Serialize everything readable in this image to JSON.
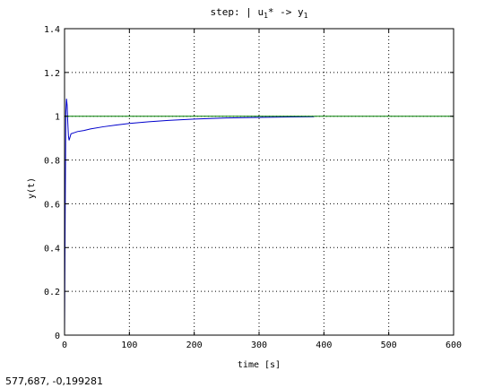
{
  "figure": {
    "background": "#ffffff"
  },
  "status_bar": {
    "coordinates": "577,687, -0,199281"
  },
  "chart_data": {
    "type": "line",
    "title": "step: | u1* -> y1",
    "title_parts": {
      "prefix": "step: | u",
      "sub1": "1",
      "mid": "* -> y",
      "sub2": "1"
    },
    "xlabel": "time [s]",
    "ylabel": "y(t)",
    "xlim": [
      0,
      600
    ],
    "ylim": [
      0,
      1.4
    ],
    "xticks": [
      0,
      100,
      200,
      300,
      400,
      500,
      600
    ],
    "yticks": [
      0,
      0.2,
      0.4,
      0.6,
      0.8,
      1,
      1.2,
      1.4
    ],
    "xtick_labels": [
      "0",
      "100",
      "200",
      "300",
      "400",
      "500",
      "600"
    ],
    "ytick_labels": [
      "0",
      "0.2",
      "0.4",
      "0.6",
      "0.8",
      "1",
      "1.2",
      "1.4"
    ],
    "grid": true,
    "grid_style": "dotted",
    "legend": "none",
    "series": [
      {
        "color": "#0000cc",
        "x": [
          0,
          1,
          2,
          3,
          4,
          5,
          6,
          7,
          8,
          10,
          15,
          20,
          30,
          40,
          60,
          80,
          100,
          130,
          160,
          200,
          250,
          300,
          350,
          385
        ],
        "y": [
          0.0,
          0.55,
          1.02,
          1.08,
          1.05,
          0.97,
          0.91,
          0.89,
          0.9,
          0.92,
          0.925,
          0.93,
          0.935,
          0.942,
          0.952,
          0.96,
          0.967,
          0.975,
          0.981,
          0.987,
          0.992,
          0.995,
          0.997,
          0.998
        ]
      },
      {
        "color": "#008000",
        "x": [
          0,
          600
        ],
        "y": [
          1,
          1
        ]
      }
    ]
  }
}
